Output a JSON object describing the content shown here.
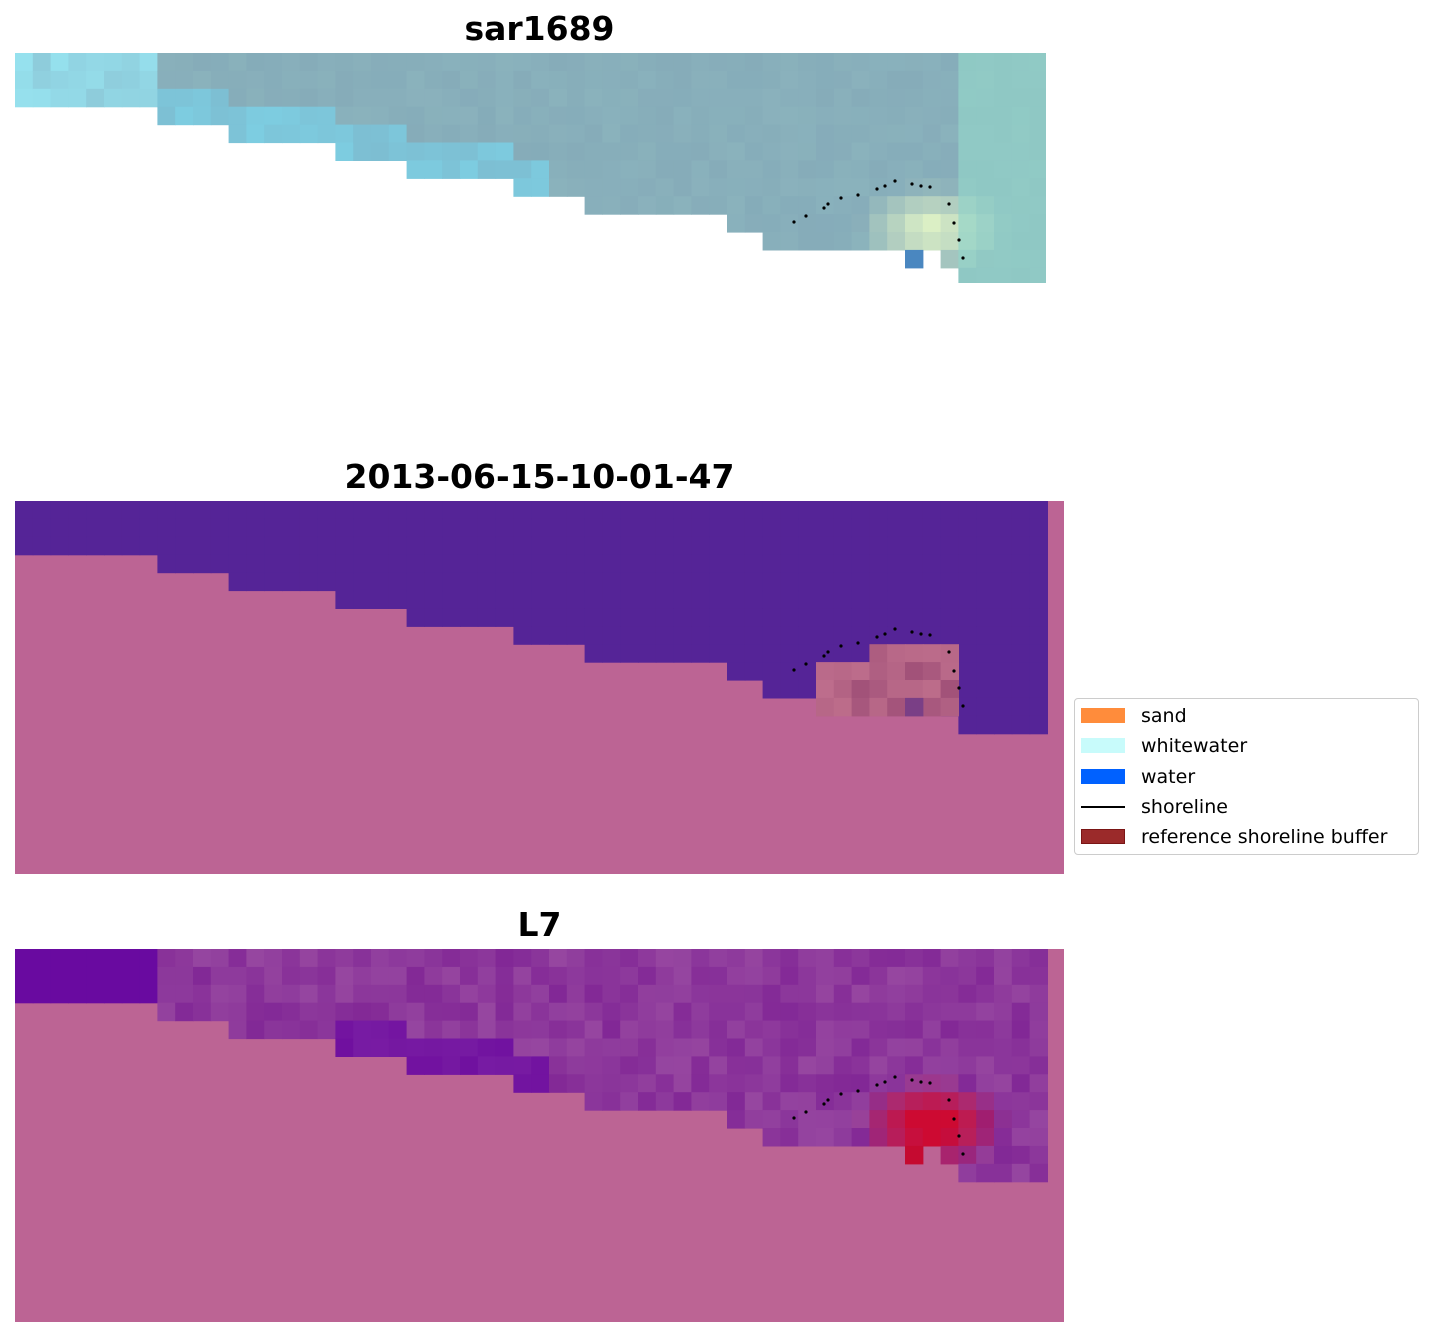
{
  "panels": [
    {
      "title": "sar1689",
      "image": "rgb-satellite-tile"
    },
    {
      "title": "2013-06-15-10-01-47",
      "image": "classified-mask"
    },
    {
      "title": "L7",
      "image": "mndwi-overlay"
    }
  ],
  "legend": {
    "items": [
      {
        "label": "sand",
        "color": "#ff8c3b",
        "kind": "patch"
      },
      {
        "label": "whitewater",
        "color": "#c8fbfb",
        "kind": "patch"
      },
      {
        "label": "water",
        "color": "#0061ff",
        "kind": "patch"
      },
      {
        "label": "shoreline",
        "color": "#000000",
        "kind": "line"
      },
      {
        "label": "reference shoreline buffer",
        "color": "#9b2a2a",
        "kind": "patch"
      }
    ]
  },
  "colors": {
    "land_overlay": "#bc6494",
    "water_class": "#552497",
    "shoreline_dots": "#000000"
  }
}
